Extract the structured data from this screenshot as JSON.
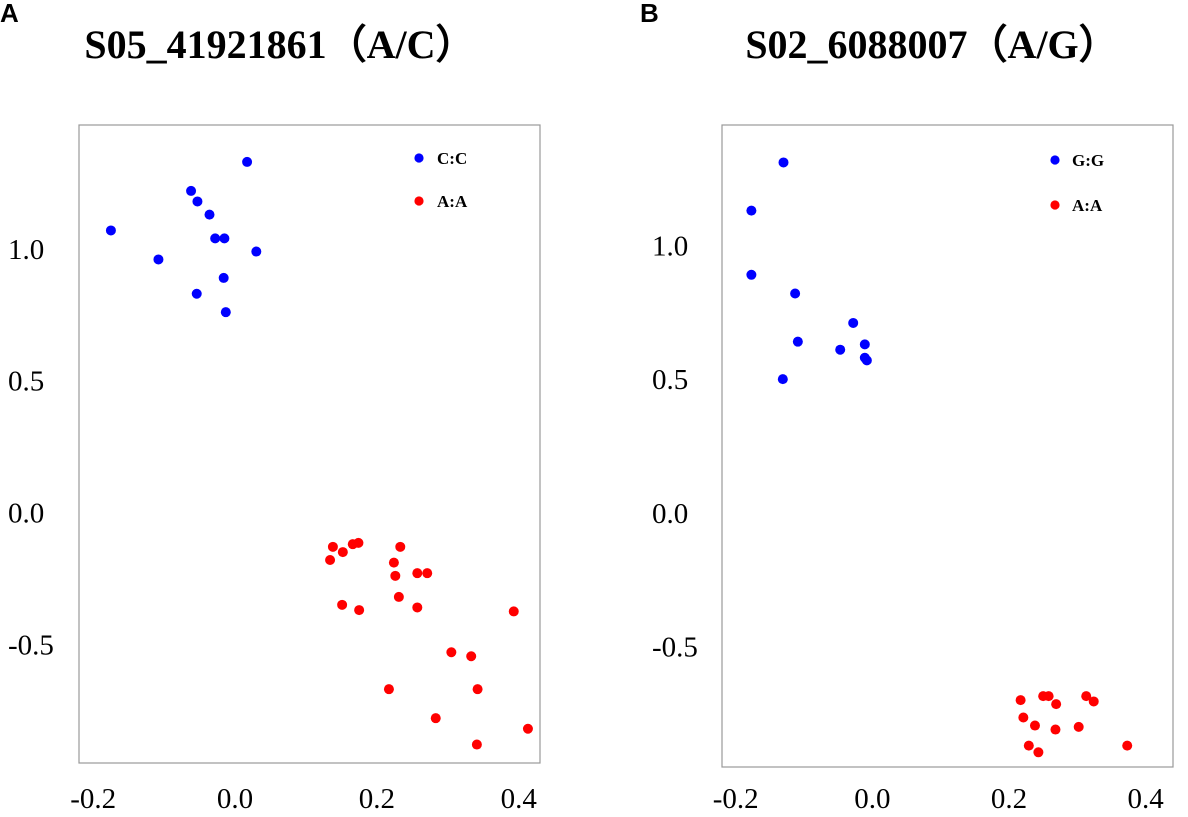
{
  "chart_data": [
    {
      "type": "scatter",
      "panel_label": "A",
      "title": "S05_41921861（A/C）",
      "xlabel": "",
      "ylabel": "",
      "xlim": [
        -0.22,
        0.43
      ],
      "ylim": [
        -0.95,
        1.47
      ],
      "x_ticks": [
        -0.2,
        0.0,
        0.2,
        0.4
      ],
      "x_tick_labels": [
        "-0.2",
        "0.0",
        "0.2",
        "0.4"
      ],
      "y_ticks": [
        1.0,
        0.5,
        0.0,
        -0.5
      ],
      "y_tick_labels": [
        "1.0",
        "0.5",
        "0.0",
        "-0.5"
      ],
      "legend_position": "top-right",
      "series": [
        {
          "name": "C:C",
          "color": "#0000ff",
          "points": [
            [
              -0.175,
              1.07
            ],
            [
              -0.062,
              1.22
            ],
            [
              -0.053,
              1.18
            ],
            [
              -0.036,
              1.13
            ],
            [
              0.017,
              1.33
            ],
            [
              -0.028,
              1.04
            ],
            [
              -0.015,
              1.04
            ],
            [
              -0.108,
              0.96
            ],
            [
              -0.016,
              0.89
            ],
            [
              0.03,
              0.99
            ],
            [
              -0.054,
              0.83
            ],
            [
              -0.013,
              0.76
            ]
          ]
        },
        {
          "name": "A:A",
          "color": "#ff0000",
          "points": [
            [
              0.138,
              -0.13
            ],
            [
              0.134,
              -0.18
            ],
            [
              0.152,
              -0.15
            ],
            [
              0.166,
              -0.12
            ],
            [
              0.174,
              -0.115
            ],
            [
              0.233,
              -0.13
            ],
            [
              0.224,
              -0.19
            ],
            [
              0.226,
              -0.24
            ],
            [
              0.257,
              -0.23
            ],
            [
              0.271,
              -0.23
            ],
            [
              0.151,
              -0.35
            ],
            [
              0.175,
              -0.37
            ],
            [
              0.231,
              -0.32
            ],
            [
              0.257,
              -0.36
            ],
            [
              0.393,
              -0.375
            ],
            [
              0.305,
              -0.53
            ],
            [
              0.333,
              -0.545
            ],
            [
              0.217,
              -0.67
            ],
            [
              0.342,
              -0.67
            ],
            [
              0.283,
              -0.78
            ],
            [
              0.413,
              -0.82
            ],
            [
              0.341,
              -0.88
            ]
          ]
        }
      ]
    },
    {
      "type": "scatter",
      "panel_label": "B",
      "title": "S02_6088007（A/G）",
      "xlabel": "",
      "ylabel": "",
      "xlim": [
        -0.22,
        0.44
      ],
      "ylim": [
        -0.95,
        1.45
      ],
      "x_ticks": [
        -0.2,
        0.0,
        0.2,
        0.4
      ],
      "x_tick_labels": [
        "-0.2",
        "0.0",
        "0.2",
        "0.4"
      ],
      "y_ticks": [
        1.0,
        0.5,
        0.0,
        -0.5
      ],
      "y_tick_labels": [
        "1.0",
        "0.5",
        "0.0",
        "-0.5"
      ],
      "legend_position": "top-right",
      "series": [
        {
          "name": "G:G",
          "color": "#0000ff",
          "points": [
            [
              -0.13,
              1.31
            ],
            [
              -0.177,
              1.13
            ],
            [
              -0.177,
              0.89
            ],
            [
              -0.113,
              0.82
            ],
            [
              -0.028,
              0.71
            ],
            [
              -0.109,
              0.64
            ],
            [
              -0.047,
              0.61
            ],
            [
              -0.011,
              0.63
            ],
            [
              -0.011,
              0.58
            ],
            [
              -0.008,
              0.57
            ],
            [
              -0.131,
              0.5
            ]
          ]
        },
        {
          "name": "A:A",
          "color": "#ff0000",
          "points": [
            [
              0.25,
              -0.685
            ],
            [
              0.258,
              -0.685
            ],
            [
              0.313,
              -0.685
            ],
            [
              0.217,
              -0.7
            ],
            [
              0.269,
              -0.715
            ],
            [
              0.324,
              -0.705
            ],
            [
              0.221,
              -0.765
            ],
            [
              0.238,
              -0.795
            ],
            [
              0.302,
              -0.8
            ],
            [
              0.268,
              -0.81
            ],
            [
              0.373,
              -0.87
            ],
            [
              0.229,
              -0.87
            ],
            [
              0.243,
              -0.895
            ]
          ]
        }
      ]
    }
  ]
}
